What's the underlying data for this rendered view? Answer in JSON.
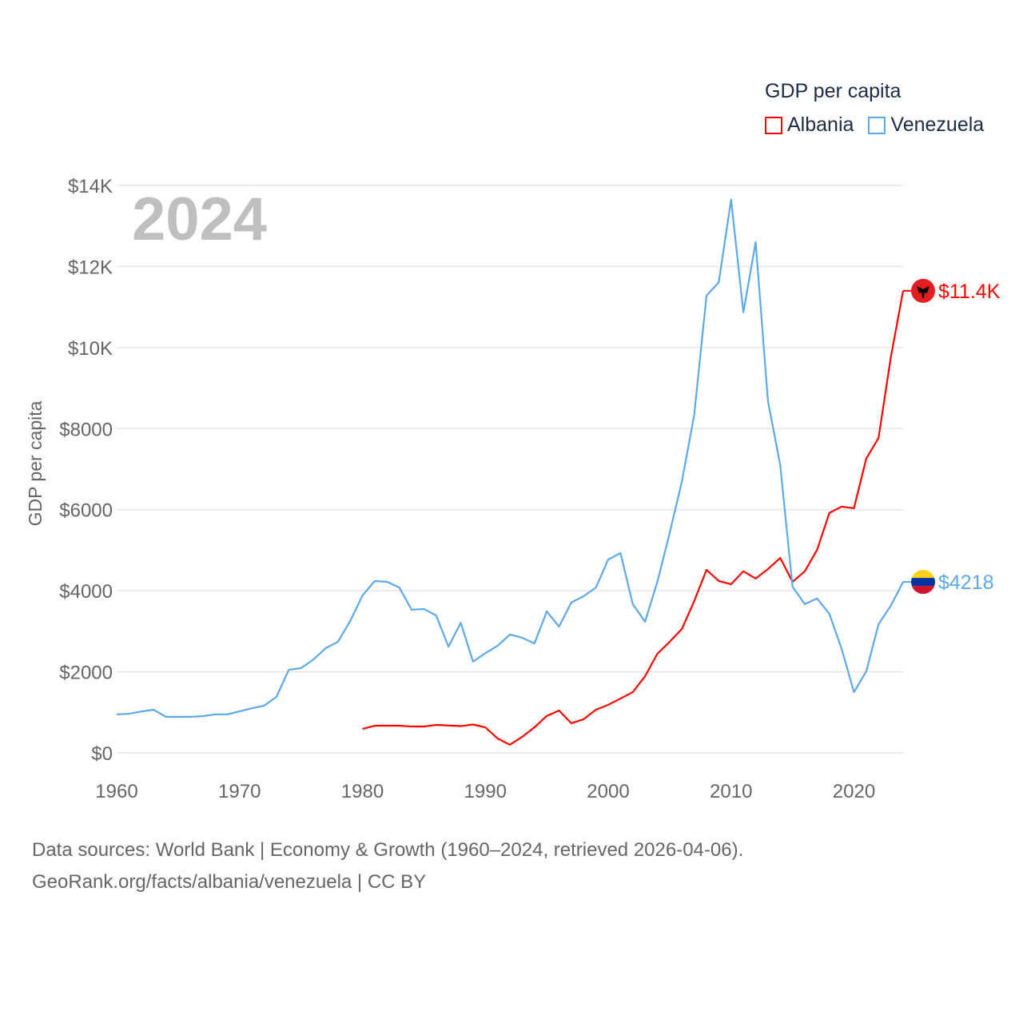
{
  "chart_data": {
    "type": "line",
    "title": "GDP per capita",
    "big_year": "2024",
    "xlabel": "",
    "ylabel": "GDP per capita",
    "xlim": [
      1960,
      2024
    ],
    "ylim": [
      0,
      14000
    ],
    "x_ticks": [
      1960,
      1970,
      1980,
      1990,
      2000,
      2010,
      2020
    ],
    "x_tick_labels": [
      "1960",
      "1970",
      "1980",
      "1990",
      "2000",
      "2010",
      "2020"
    ],
    "y_ticks": [
      0,
      2000,
      4000,
      6000,
      8000,
      10000,
      12000,
      14000
    ],
    "y_tick_labels": [
      "$0",
      "$2000",
      "$4000",
      "$6000",
      "$8000",
      "$10K",
      "$12K",
      "$14K"
    ],
    "grid": true,
    "legend_position": "top-right",
    "series": [
      {
        "name": "Albania",
        "color": "#ff0000",
        "end_label": "$11.4K",
        "start_year": 1980,
        "values": [
          590,
          670,
          670,
          670,
          650,
          650,
          690,
          675,
          660,
          700,
          630,
          355,
          200,
          395,
          630,
          910,
          1045,
          730,
          830,
          1065,
          1185,
          1340,
          1500,
          1890,
          2445,
          2740,
          3060,
          3745,
          4515,
          4240,
          4160,
          4480,
          4300,
          4535,
          4810,
          4220,
          4480,
          5010,
          5920,
          6075,
          6035,
          7260,
          7770,
          9760,
          11400
        ]
      },
      {
        "name": "Venezuela",
        "color": "#5ea8ec",
        "end_label": "$4218",
        "start_year": 1960,
        "values": [
          950,
          965,
          1020,
          1065,
          890,
          890,
          890,
          905,
          950,
          950,
          1025,
          1100,
          1165,
          1380,
          2050,
          2090,
          2300,
          2580,
          2740,
          3250,
          3880,
          4240,
          4220,
          4080,
          3530,
          3550,
          3390,
          2620,
          3210,
          2250,
          2460,
          2640,
          2920,
          2840,
          2700,
          3490,
          3115,
          3710,
          3865,
          4080,
          4770,
          4930,
          3670,
          3235,
          4220,
          5420,
          6700,
          8340,
          11280,
          11610,
          13650,
          10870,
          12600,
          8680,
          7100,
          4100,
          3670,
          3810,
          3430,
          2560,
          1500,
          2010,
          3175,
          3630,
          4218
        ]
      }
    ]
  },
  "source": {
    "line1": "Data sources: World Bank | Economy & Growth (1960–2024, retrieved 2026-04-06).",
    "line2": "GeoRank.org/facts/albania/venezuela | CC BY"
  }
}
